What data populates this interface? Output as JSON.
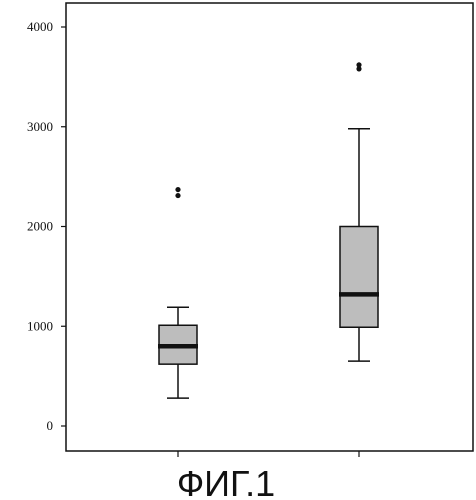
{
  "chart_data": {
    "type": "box",
    "ylim": [
      0,
      4000
    ],
    "yticks": [
      0,
      1000,
      2000,
      3000,
      4000
    ],
    "ytick_labels": [
      "0",
      "1000",
      "2000",
      "3000",
      "4000"
    ],
    "grid": false,
    "box_fill": "#bdbdbd",
    "box_stroke": "#111111",
    "boxes": [
      {
        "whisker_low": 280,
        "q1": 620,
        "median": 800,
        "q3": 1010,
        "whisker_high": 1190,
        "outliers": [
          2310,
          2370
        ]
      },
      {
        "whisker_low": 650,
        "q1": 990,
        "median": 1320,
        "q3": 2000,
        "whisker_high": 2980,
        "outliers": [
          3580,
          3620
        ]
      }
    ]
  },
  "caption": "ФИГ.1"
}
